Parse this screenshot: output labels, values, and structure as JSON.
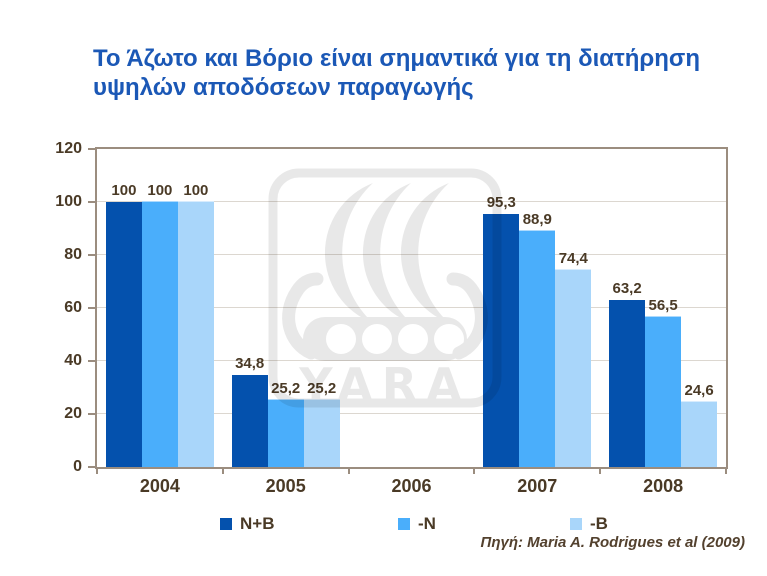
{
  "slide": {
    "title": "Το Άζωτο και Βόριο είναι σημαντικά για τη διατήρηση υψηλών αποδόσεων παραγωγής",
    "source": "Πηγή: Maria A. Rodrigues et al (2009)",
    "watermark_text": "YARA"
  },
  "colors": {
    "title_blue": "#1b58b6",
    "label_brown": "#4a3a26",
    "axis_border": "#9b8d7f",
    "gridline": "#dcd7d0",
    "background": "#ffffff"
  },
  "chart_data": {
    "type": "bar",
    "title": "Το Άζωτο και Βόριο είναι σημαντικά για τη διατήρηση υψηλών αποδόσεων παραγωγής",
    "categories": [
      "2004",
      "2005",
      "2006",
      "2007",
      "2008"
    ],
    "series": [
      {
        "name": "N+B",
        "color": "#0451ad",
        "values": [
          100,
          34.8,
          null,
          95.3,
          63.2
        ]
      },
      {
        "name": "-N",
        "color": "#4aaefb",
        "values": [
          100,
          25.2,
          null,
          88.9,
          56.5
        ]
      },
      {
        "name": "-B",
        "color": "#a9d6fa",
        "values": [
          100,
          25.2,
          null,
          74.4,
          24.6
        ]
      }
    ],
    "value_labels": [
      "100",
      "34,8",
      "95,3",
      "63,2",
      "100",
      "25,2",
      "88,9",
      "56,5",
      "100",
      "25,2",
      "74,4",
      "24,6"
    ],
    "xlabel": "",
    "ylabel": "",
    "ylim": [
      0,
      120
    ],
    "yticks": [
      0,
      20,
      40,
      60,
      80,
      100,
      120
    ],
    "ytick_step": 20,
    "grid": true,
    "legend_position": "bottom",
    "decimal_separator": ",",
    "annotations": [
      "Πηγή: Maria A. Rodrigues et al (2009)"
    ]
  }
}
